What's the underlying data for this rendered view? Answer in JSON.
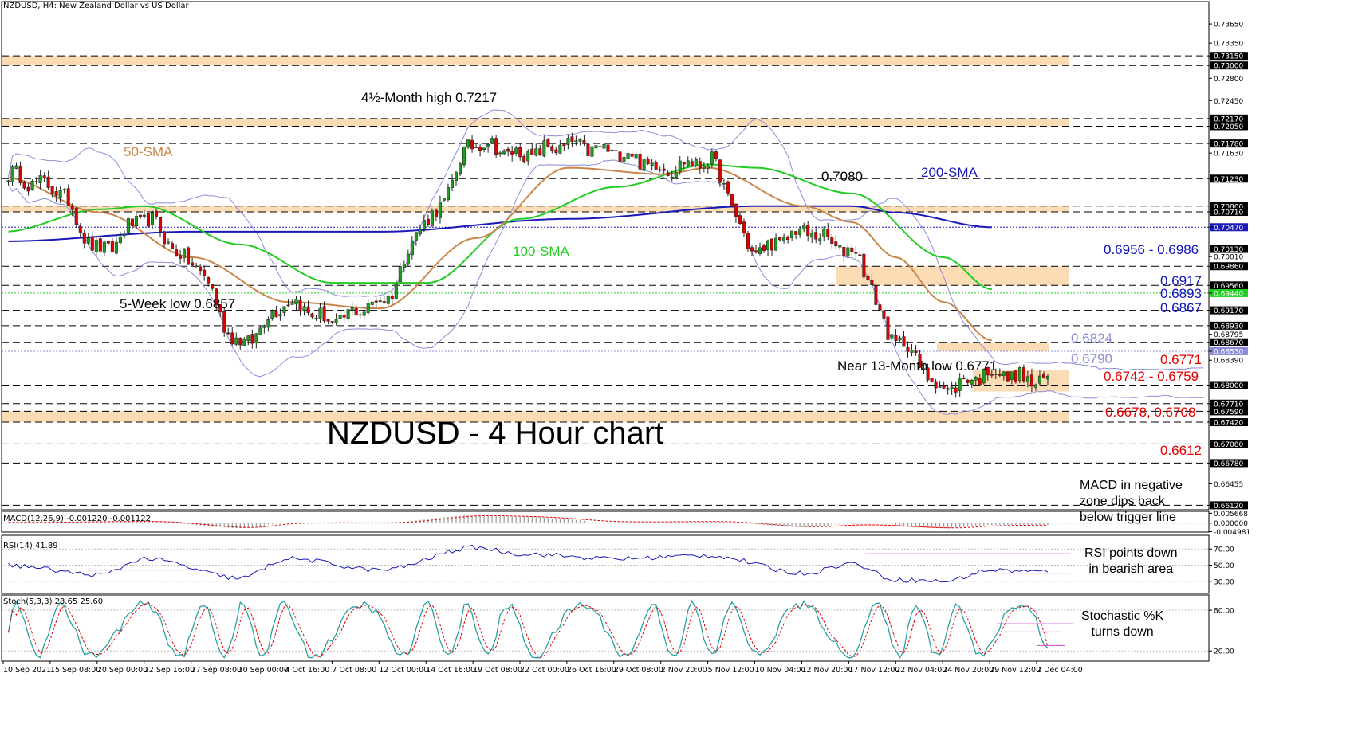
{
  "header": {
    "main": "NZDUSD, H4:  New Zealand Dollar vs US Dollar",
    "macd": "MACD(12,26,9) -0.001220 -0.001122",
    "rsi": "RSI(14) 41.89",
    "stoch": "Stoch(5,3,3) 23.65 25.60"
  },
  "big_title": "NZDUSD - 4 Hour chart",
  "colors": {
    "sma50": "#c8864a",
    "sma100": "#22cc22",
    "sma200": "#1a1ab8",
    "bollinger": "#8c8cd8",
    "zone": "#fbdcb4",
    "red_label": "#e00000",
    "blue_label": "#1010c0",
    "bull": "#1e9e1e",
    "bear": "#e00000"
  },
  "annotations": {
    "high": "4½-Month high 0.7217",
    "low5w": "5-Week low 0.6857",
    "sma50": "50-SMA",
    "sma100": "100-SMA",
    "sma200": "200-SMA",
    "p7080": "0.7080",
    "zone6956": "0.6956 - 0.6986",
    "p6917": "0.6917",
    "p6893": "0.6893",
    "p6867": "0.6867",
    "p6824": "0.6824",
    "p6790": "0.6790",
    "p6771": "0.6771",
    "low13m": "Near 13-Month low 0.6771",
    "zone6742": "0.6742 - 0.6759",
    "p6678": "0.6678, 0.6708",
    "p6612": "0.6612",
    "macd_note": [
      "MACD in negative",
      "zone dips back",
      "below trigger line"
    ],
    "rsi_note": [
      "RSI points down",
      "in bearish area"
    ],
    "stoch_note": [
      "Stochastic %K",
      "turns down"
    ]
  },
  "chart_data": [
    {
      "type": "candlestick",
      "title": "NZDUSD, H4",
      "ylim": [
        0.6605,
        0.7385
      ],
      "price_ticks": [
        "0.73650",
        "0.73350",
        "0.73150",
        "0.73000",
        "0.72800",
        "0.72450",
        "0.72170",
        "0.72050",
        "0.71780",
        "0.71630",
        "0.71230",
        "0.70800",
        "0.70710",
        "0.70470",
        "0.70130",
        "0.70010",
        "0.69860",
        "0.69560",
        "0.69440",
        "0.69170",
        "0.68930",
        "0.68795",
        "0.68670",
        "0.68530",
        "0.68390",
        "0.68000",
        "0.67710",
        "0.67590",
        "0.67420",
        "0.67080",
        "0.66780",
        "0.66455",
        "0.66120"
      ],
      "dashed_levels": [
        0.7315,
        0.73,
        0.7217,
        0.7205,
        0.7178,
        0.7123,
        0.708,
        0.7071,
        0.7013,
        0.6986,
        0.6956,
        0.6917,
        0.6893,
        0.6867,
        0.68,
        0.6771,
        0.6759,
        0.6742,
        0.6708,
        0.6678,
        0.6612
      ],
      "dotted_levels": [
        {
          "value": 0.7047,
          "color": "#1a1ab8"
        },
        {
          "value": 0.6944,
          "color": "#22cc22"
        },
        {
          "value": 0.6853,
          "color": "#8c8cd8"
        }
      ],
      "zones": [
        [
          0.73,
          0.7315
        ],
        [
          0.7205,
          0.7217
        ],
        [
          0.7071,
          0.708
        ],
        [
          0.6956,
          0.6986
        ],
        [
          0.6853,
          0.6867
        ],
        [
          0.679,
          0.6824
        ],
        [
          0.6742,
          0.6759
        ]
      ],
      "x_ticks": [
        "10 Sep 2021",
        "15 Sep 08:00",
        "20 Sep 00:00",
        "22 Sep 16:00",
        "27 Sep 08:00",
        "30 Sep 00:00",
        "4 Oct 16:00",
        "7 Oct 08:00",
        "12 Oct 00:00",
        "14 Oct 16:00",
        "19 Oct 08:00",
        "22 Oct 00:00",
        "26 Oct 16:00",
        "29 Oct 08:00",
        "2 Nov 20:00",
        "5 Nov 12:00",
        "10 Nov 04:00",
        "12 Nov 20:00",
        "17 Nov 12:00",
        "22 Nov 04:00",
        "24 Nov 20:00",
        "29 Nov 12:00",
        "2 Dec 04:00"
      ],
      "close_anchors": [
        {
          "tick": 0,
          "value": 0.713
        },
        {
          "tick": 1,
          "value": 0.711
        },
        {
          "tick": 2,
          "value": 0.701
        },
        {
          "tick": 3,
          "value": 0.706
        },
        {
          "tick": 4,
          "value": 0.699
        },
        {
          "tick": 5,
          "value": 0.6865
        },
        {
          "tick": 6,
          "value": 0.693
        },
        {
          "tick": 7,
          "value": 0.69
        },
        {
          "tick": 8,
          "value": 0.693
        },
        {
          "tick": 9,
          "value": 0.706
        },
        {
          "tick": 10,
          "value": 0.718
        },
        {
          "tick": 11,
          "value": 0.716
        },
        {
          "tick": 12,
          "value": 0.7175
        },
        {
          "tick": 13,
          "value": 0.7165
        },
        {
          "tick": 14,
          "value": 0.714
        },
        {
          "tick": 15,
          "value": 0.715
        },
        {
          "tick": 16,
          "value": 0.701
        },
        {
          "tick": 17,
          "value": 0.704
        },
        {
          "tick": 18,
          "value": 0.701
        },
        {
          "tick": 19,
          "value": 0.687
        },
        {
          "tick": 20,
          "value": 0.6795
        },
        {
          "tick": 21,
          "value": 0.682
        },
        {
          "tick": 22,
          "value": 0.6805
        }
      ],
      "sma50": [
        [
          0,
          0.7125
        ],
        [
          2,
          0.707
        ],
        [
          4,
          0.7
        ],
        [
          6,
          0.693
        ],
        [
          8,
          0.692
        ],
        [
          10,
          0.703
        ],
        [
          12,
          0.714
        ],
        [
          14,
          0.713
        ],
        [
          15,
          0.714
        ],
        [
          17,
          0.708
        ],
        [
          18,
          0.7055
        ],
        [
          19,
          0.7
        ],
        [
          20,
          0.693
        ],
        [
          21,
          0.687
        ]
      ],
      "sma100": [
        [
          0,
          0.704
        ],
        [
          2,
          0.7075
        ],
        [
          3,
          0.708
        ],
        [
          5,
          0.702
        ],
        [
          7,
          0.696
        ],
        [
          9,
          0.696
        ],
        [
          11,
          0.706
        ],
        [
          13,
          0.711
        ],
        [
          15,
          0.7145
        ],
        [
          16,
          0.714
        ],
        [
          18,
          0.71
        ],
        [
          20,
          0.7
        ],
        [
          21,
          0.695
        ]
      ],
      "sma200": [
        [
          0,
          0.7025
        ],
        [
          4,
          0.704
        ],
        [
          8,
          0.704
        ],
        [
          12,
          0.706
        ],
        [
          16,
          0.708
        ],
        [
          18,
          0.708
        ],
        [
          19,
          0.707
        ],
        [
          21,
          0.7047
        ]
      ]
    },
    {
      "type": "histogram",
      "title": "MACD(12,26,9)",
      "ylim": [
        -0.00518,
        0.00583
      ],
      "y_ticks": [
        "0.005668",
        "0.000000",
        "-0.004981"
      ],
      "anchors": [
        [
          0,
          0.0004
        ],
        [
          3,
          0.001
        ],
        [
          5,
          -0.0029
        ],
        [
          6,
          0.0003
        ],
        [
          8,
          0.0001
        ],
        [
          10,
          0.0046
        ],
        [
          11,
          0.0037
        ],
        [
          13,
          0.0006
        ],
        [
          15,
          0.001
        ],
        [
          17,
          -0.0024
        ],
        [
          18,
          -0.0008
        ],
        [
          20,
          -0.003
        ],
        [
          21,
          -0.0012
        ],
        [
          22,
          -0.0012
        ]
      ]
    },
    {
      "type": "line",
      "title": "RSI(14)",
      "ylim": [
        15,
        85
      ],
      "y_ticks": [
        "70.00",
        "50.00",
        "30.00"
      ],
      "levels": [
        70,
        50,
        30
      ],
      "anchors": [
        [
          0,
          50
        ],
        [
          2,
          38
        ],
        [
          3,
          58
        ],
        [
          5,
          34
        ],
        [
          6,
          58
        ],
        [
          8,
          44
        ],
        [
          10,
          72
        ],
        [
          11,
          64
        ],
        [
          13,
          58
        ],
        [
          15,
          62
        ],
        [
          17,
          40
        ],
        [
          18,
          52
        ],
        [
          19,
          32
        ],
        [
          20,
          30
        ],
        [
          21,
          44
        ],
        [
          22,
          42
        ]
      ]
    },
    {
      "type": "line",
      "title": "Stoch(5,3,3)",
      "ylim": [
        5,
        100
      ],
      "y_ticks": [
        "80.00",
        "20.00"
      ],
      "levels": [
        80,
        20
      ],
      "last_values": [
        23.65,
        25.6
      ]
    }
  ]
}
